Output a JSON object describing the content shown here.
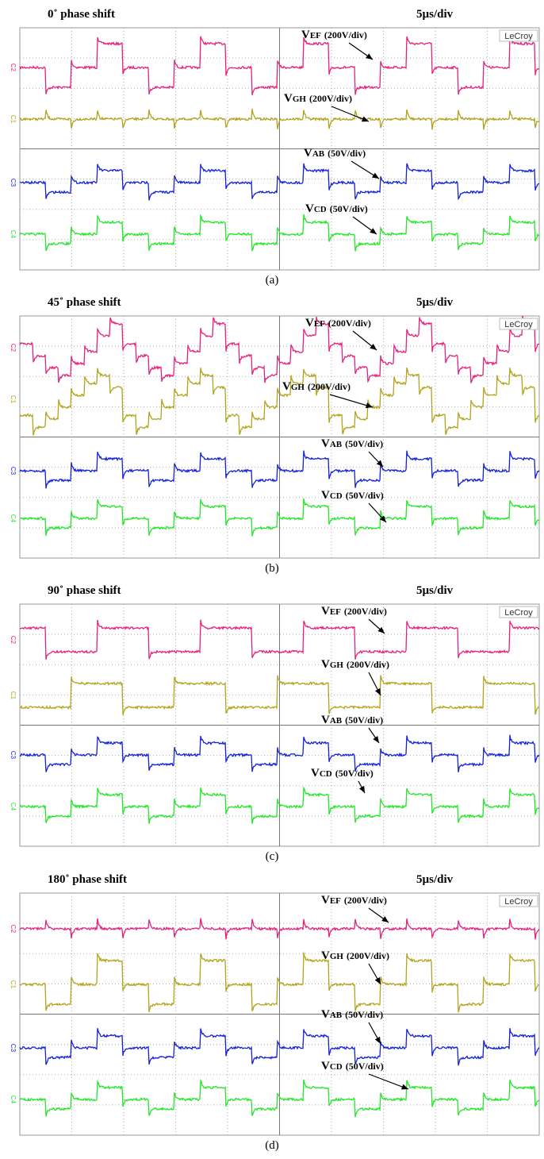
{
  "panels": [
    {
      "title": "0˚ phase shift",
      "time_scale": "5µs/div",
      "brand": "LeCroy",
      "channels": [
        "C2",
        "C1",
        "C3",
        "C4"
      ],
      "annotations": [
        {
          "symbol": "V",
          "subscript": "EF",
          "scale": "(200V/div)"
        },
        {
          "symbol": "V",
          "subscript": "GH",
          "scale": "(200V/div)"
        },
        {
          "symbol": "V",
          "subscript": "AB",
          "scale": "(50V/div)"
        },
        {
          "symbol": "V",
          "subscript": "CD",
          "scale": "(50V/div)"
        }
      ],
      "caption": "(a)"
    },
    {
      "title": "45˚ phase shift",
      "time_scale": "5µs/div",
      "brand": "LeCroy",
      "channels": [
        "C2",
        "C1",
        "C3",
        "C4"
      ],
      "annotations": [
        {
          "symbol": "V",
          "subscript": "EF",
          "scale": "(200V/div)"
        },
        {
          "symbol": "V",
          "subscript": "GH",
          "scale": "(200V/div)"
        },
        {
          "symbol": "V",
          "subscript": "AB",
          "scale": "(50V/div)"
        },
        {
          "symbol": "V",
          "subscript": "CD",
          "scale": "(50V/div)"
        }
      ],
      "caption": "(b)"
    },
    {
      "title": "90˚ phase shift",
      "time_scale": "5µs/div",
      "brand": "LeCroy",
      "channels": [
        "C2",
        "C1",
        "C3",
        "C4"
      ],
      "annotations": [
        {
          "symbol": "V",
          "subscript": "EF",
          "scale": "(200V/div)"
        },
        {
          "symbol": "V",
          "subscript": "GH",
          "scale": "(200V/div)"
        },
        {
          "symbol": "V",
          "subscript": "AB",
          "scale": "(50V/div)"
        },
        {
          "symbol": "V",
          "subscript": "CD",
          "scale": "(50V/div)"
        }
      ],
      "caption": "(c)"
    },
    {
      "title": "180˚ phase shift",
      "time_scale": "5µs/div",
      "brand": "LeCroy",
      "channels": [
        "C2",
        "C1",
        "C3",
        "C4"
      ],
      "annotations": [
        {
          "symbol": "V",
          "subscript": "EF",
          "scale": "(200V/div)"
        },
        {
          "symbol": "V",
          "subscript": "GH",
          "scale": "(200V/div)"
        },
        {
          "symbol": "V",
          "subscript": "AB",
          "scale": "(50V/div)"
        },
        {
          "symbol": "V",
          "subscript": "CD",
          "scale": "(50V/div)"
        }
      ],
      "caption": "(d)"
    }
  ]
}
